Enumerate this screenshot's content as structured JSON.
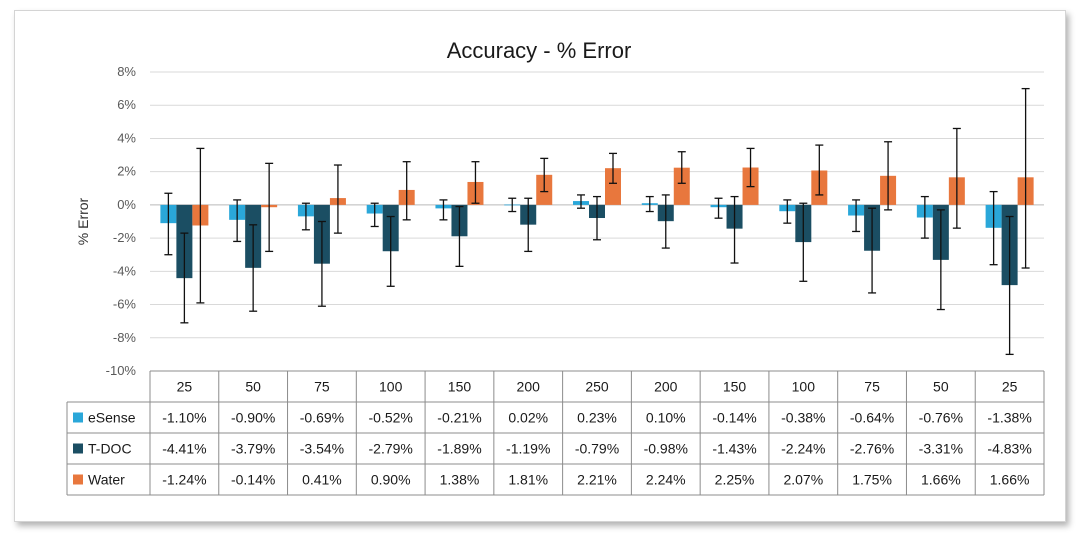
{
  "chart_data": {
    "type": "bar",
    "title": "Accuracy  - % Error",
    "ylabel": "% Error",
    "xlabel": "",
    "ylim": [
      -10,
      8
    ],
    "y_ticks": [
      "8%",
      "6%",
      "4%",
      "2%",
      "0%",
      "-2%",
      "-4%",
      "-6%",
      "-8%",
      "-10%"
    ],
    "grid": true,
    "legend": "data-table-left",
    "categories": [
      "25",
      "50",
      "75",
      "100",
      "150",
      "200",
      "250",
      "200",
      "150",
      "100",
      "75",
      "50",
      "25"
    ],
    "series": [
      {
        "name": "eSense",
        "color": "#2aa7d9",
        "values": [
          -1.1,
          -0.9,
          -0.69,
          -0.52,
          -0.21,
          0.02,
          0.23,
          0.1,
          -0.14,
          -0.38,
          -0.64,
          -0.76,
          -1.38
        ],
        "labels": [
          "-1.10%",
          "-0.90%",
          "-0.69%",
          "-0.52%",
          "-0.21%",
          "0.02%",
          "0.23%",
          "0.10%",
          "-0.14%",
          "-0.38%",
          "-0.64%",
          "-0.76%",
          "-1.38%"
        ],
        "error_low": [
          -3.0,
          -2.2,
          -1.5,
          -1.3,
          -0.9,
          -0.4,
          -0.2,
          -0.4,
          -0.8,
          -1.1,
          -1.6,
          -2.0,
          -3.6
        ],
        "error_high": [
          0.7,
          0.3,
          0.1,
          0.1,
          0.3,
          0.4,
          0.6,
          0.5,
          0.4,
          0.3,
          0.3,
          0.5,
          0.8
        ]
      },
      {
        "name": "T-DOC",
        "color": "#1b4e63",
        "values": [
          -4.41,
          -3.79,
          -3.54,
          -2.79,
          -1.89,
          -1.19,
          -0.79,
          -0.98,
          -1.43,
          -2.24,
          -2.76,
          -3.31,
          -4.83
        ],
        "labels": [
          "-4.41%",
          "-3.79%",
          "-3.54%",
          "-2.79%",
          "-1.89%",
          "-1.19%",
          "-0.79%",
          "-0.98%",
          "-1.43%",
          "-2.24%",
          "-2.76%",
          "-3.31%",
          "-4.83%"
        ],
        "error_low": [
          -7.1,
          -6.4,
          -6.1,
          -4.9,
          -3.7,
          -2.8,
          -2.1,
          -2.6,
          -3.5,
          -4.6,
          -5.3,
          -6.3,
          -9.0
        ],
        "error_high": [
          -1.7,
          -1.2,
          -1.0,
          -0.7,
          -0.1,
          0.4,
          0.5,
          0.6,
          0.5,
          0.1,
          -0.2,
          -0.3,
          -0.7
        ]
      },
      {
        "name": "Water",
        "color": "#e8773d",
        "values": [
          -1.24,
          -0.14,
          0.41,
          0.9,
          1.38,
          1.81,
          2.21,
          2.24,
          2.25,
          2.07,
          1.75,
          1.66,
          1.66
        ],
        "labels": [
          "-1.24%",
          "-0.14%",
          "0.41%",
          "0.90%",
          "1.38%",
          "1.81%",
          "2.21%",
          "2.24%",
          "2.25%",
          "2.07%",
          "1.75%",
          "1.66%",
          "1.66%"
        ],
        "error_low": [
          -5.9,
          -2.8,
          -1.7,
          -0.9,
          0.1,
          0.8,
          1.3,
          1.3,
          1.1,
          0.6,
          -0.3,
          -1.4,
          -3.8
        ],
        "error_high": [
          3.4,
          2.5,
          2.4,
          2.6,
          2.6,
          2.8,
          3.1,
          3.2,
          3.4,
          3.6,
          3.8,
          4.6,
          7.0
        ]
      }
    ]
  }
}
